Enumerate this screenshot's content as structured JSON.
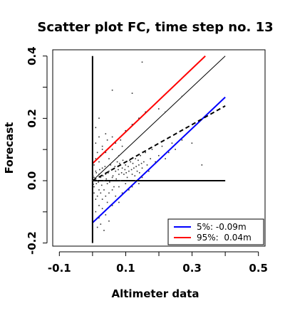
{
  "chart_data": {
    "type": "scatter",
    "title": "Scatter plot FC, time step no. 13",
    "xlabel": "Altimeter data",
    "ylabel": "Forecast",
    "xlim": [
      -0.12,
      0.52
    ],
    "ylim": [
      -0.21,
      0.42
    ],
    "xticks": [
      -0.1,
      0.1,
      0.3,
      0.5
    ],
    "xtick_labels": [
      "-0.1",
      "0.1",
      "0.3",
      "0.5"
    ],
    "xticks_minor": [
      0.0,
      0.2,
      0.4
    ],
    "yticks": [
      -0.2,
      0.0,
      0.2,
      0.4
    ],
    "ytick_labels": [
      "-0.2",
      "0.0",
      "0.2",
      "0.4"
    ],
    "yticks_minor": [
      -0.1,
      0.1,
      0.3
    ],
    "grid": false,
    "legend_position": "bottom-right",
    "reference_lines": [
      {
        "name": "5%: -0.09m",
        "color": "#0000ff",
        "x": [
          0.0,
          0.4
        ],
        "y": [
          -0.135,
          0.268
        ],
        "style": "solid"
      },
      {
        "name": "95%:  0.04m",
        "color": "#ff0000",
        "x": [
          0.0,
          0.34
        ],
        "y": [
          0.055,
          0.4
        ],
        "style": "solid"
      },
      {
        "color": "#000000",
        "x": [
          0.0,
          0.4
        ],
        "y": [
          0.0,
          0.4
        ],
        "style": "solid-thin"
      },
      {
        "color": "#000000",
        "x": [
          0.0,
          0.4
        ],
        "y": [
          0.0,
          0.24
        ],
        "style": "dashed"
      },
      {
        "color": "#000000",
        "x": [
          0.0,
          0.0
        ],
        "y": [
          -0.2,
          0.4
        ],
        "style": "solid"
      },
      {
        "color": "#000000",
        "x": [
          0.0,
          0.4
        ],
        "y": [
          0.0,
          0.0
        ],
        "style": "solid"
      }
    ],
    "series": [
      {
        "color": "#333333",
        "points": [
          [
            0.005,
            0.01
          ],
          [
            0.01,
            0.03
          ],
          [
            0.015,
            0.0
          ],
          [
            0.02,
            0.02
          ],
          [
            0.005,
            -0.02
          ],
          [
            0.012,
            -0.01
          ],
          [
            0.02,
            -0.03
          ],
          [
            0.025,
            0.01
          ],
          [
            0.03,
            0.04
          ],
          [
            0.035,
            0.0
          ],
          [
            0.04,
            0.02
          ],
          [
            0.045,
            -0.01
          ],
          [
            0.05,
            0.03
          ],
          [
            0.055,
            0.05
          ],
          [
            0.06,
            0.01
          ],
          [
            0.065,
            -0.02
          ],
          [
            0.07,
            0.03
          ],
          [
            0.075,
            0.06
          ],
          [
            0.08,
            0.02
          ],
          [
            0.085,
            0.0
          ],
          [
            0.09,
            0.04
          ],
          [
            0.095,
            0.02
          ],
          [
            0.1,
            0.05
          ],
          [
            0.105,
            0.01
          ],
          [
            0.11,
            0.03
          ],
          [
            0.115,
            0.06
          ],
          [
            0.12,
            0.02
          ],
          [
            0.125,
            0.04
          ],
          [
            0.13,
            0.07
          ],
          [
            0.135,
            0.03
          ],
          [
            0.14,
            0.05
          ],
          [
            0.145,
            0.08
          ],
          [
            0.15,
            0.04
          ],
          [
            0.155,
            0.06
          ],
          [
            0.16,
            0.09
          ],
          [
            0.165,
            0.05
          ],
          [
            0.17,
            0.03
          ],
          [
            0.175,
            0.07
          ],
          [
            0.18,
            0.1
          ],
          [
            0.19,
            0.06
          ],
          [
            0.2,
            0.08
          ],
          [
            0.21,
            0.11
          ],
          [
            0.22,
            0.07
          ],
          [
            0.23,
            0.09
          ],
          [
            0.24,
            0.12
          ],
          [
            0.25,
            0.1
          ],
          [
            0.27,
            0.13
          ],
          [
            0.3,
            0.12
          ],
          [
            0.005,
            0.05
          ],
          [
            0.01,
            0.07
          ],
          [
            0.015,
            0.09
          ],
          [
            0.02,
            0.06
          ],
          [
            0.025,
            0.08
          ],
          [
            0.03,
            0.1
          ],
          [
            0.01,
            0.12
          ],
          [
            0.02,
            0.14
          ],
          [
            0.03,
            0.11
          ],
          [
            0.04,
            0.09
          ],
          [
            0.045,
            0.13
          ],
          [
            0.05,
            0.07
          ],
          [
            0.06,
            0.1
          ],
          [
            0.07,
            0.12
          ],
          [
            0.08,
            0.08
          ],
          [
            0.09,
            0.11
          ],
          [
            0.005,
            -0.04
          ],
          [
            0.01,
            -0.06
          ],
          [
            0.015,
            -0.05
          ],
          [
            0.02,
            -0.08
          ],
          [
            0.025,
            -0.04
          ],
          [
            0.03,
            -0.06
          ],
          [
            0.035,
            -0.03
          ],
          [
            0.04,
            -0.05
          ],
          [
            0.045,
            -0.07
          ],
          [
            0.05,
            -0.04
          ],
          [
            0.06,
            -0.03
          ],
          [
            0.07,
            -0.05
          ],
          [
            0.08,
            -0.02
          ],
          [
            0.09,
            -0.04
          ],
          [
            0.1,
            -0.01
          ],
          [
            0.11,
            -0.03
          ],
          [
            0.12,
            -0.02
          ],
          [
            0.13,
            0.0
          ],
          [
            0.14,
            -0.01
          ],
          [
            0.15,
            0.01
          ],
          [
            0.01,
            -0.1
          ],
          [
            0.02,
            -0.12
          ],
          [
            0.03,
            -0.09
          ],
          [
            0.04,
            -0.11
          ],
          [
            0.05,
            -0.13
          ],
          [
            0.015,
            -0.15
          ],
          [
            0.025,
            -0.14
          ],
          [
            0.035,
            -0.16
          ],
          [
            0.06,
            -0.08
          ],
          [
            0.08,
            -0.07
          ],
          [
            0.04,
            0.15
          ],
          [
            0.06,
            0.14
          ],
          [
            0.085,
            0.13
          ],
          [
            0.1,
            0.16
          ],
          [
            0.12,
            0.18
          ],
          [
            0.14,
            0.2
          ],
          [
            0.16,
            0.22
          ],
          [
            0.22,
            0.22
          ],
          [
            0.06,
            0.29
          ],
          [
            0.12,
            0.28
          ],
          [
            0.15,
            0.38
          ],
          [
            0.2,
            0.23
          ],
          [
            0.27,
            0.27
          ],
          [
            0.33,
            0.05
          ],
          [
            0.01,
            0.17
          ],
          [
            0.02,
            0.2
          ],
          [
            0.0,
            0.0
          ],
          [
            0.002,
            0.015
          ],
          [
            0.003,
            -0.012
          ],
          [
            0.008,
            0.005
          ],
          [
            0.012,
            0.025
          ],
          [
            0.018,
            -0.005
          ],
          [
            0.022,
            0.035
          ],
          [
            0.028,
            -0.015
          ],
          [
            0.032,
            0.015
          ],
          [
            0.038,
            0.045
          ],
          [
            0.042,
            0.005
          ],
          [
            0.048,
            0.025
          ],
          [
            0.052,
            -0.005
          ],
          [
            0.058,
            0.035
          ],
          [
            0.062,
            0.015
          ],
          [
            0.068,
            0.045
          ],
          [
            0.072,
            0.005
          ],
          [
            0.078,
            0.035
          ],
          [
            0.082,
            0.055
          ],
          [
            0.088,
            0.025
          ],
          [
            0.092,
            0.065
          ],
          [
            0.098,
            0.035
          ],
          [
            0.102,
            0.025
          ],
          [
            0.108,
            0.045
          ],
          [
            0.112,
            0.065
          ],
          [
            0.118,
            0.035
          ],
          [
            0.122,
            0.055
          ],
          [
            0.128,
            0.015
          ],
          [
            0.132,
            0.045
          ],
          [
            0.138,
            0.065
          ],
          [
            0.142,
            0.025
          ],
          [
            0.148,
            0.055
          ]
        ]
      }
    ]
  }
}
